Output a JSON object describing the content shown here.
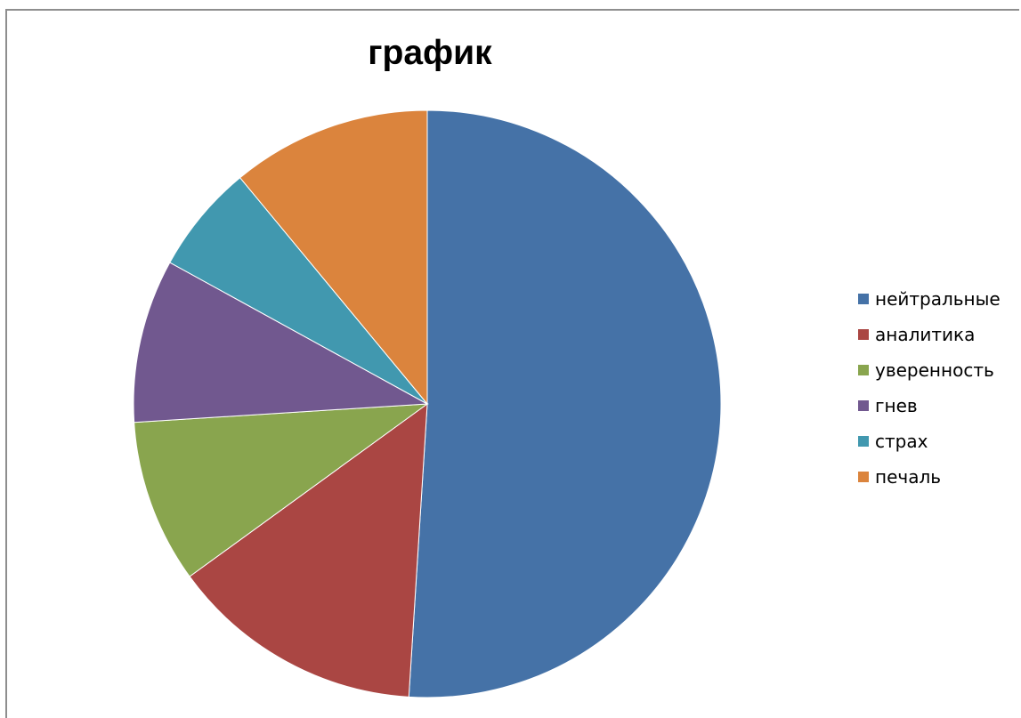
{
  "chart_data": {
    "type": "pie",
    "title": "график",
    "categories": [
      "нейтральные",
      "аналитика",
      "уверенность",
      "гнев",
      "страх",
      "печаль"
    ],
    "values": [
      51,
      14,
      9,
      9,
      6,
      11
    ],
    "colors": [
      "#4572a7",
      "#aa4643",
      "#89a54e",
      "#71588f",
      "#4198af",
      "#db843d"
    ],
    "start_angle_deg": 0,
    "direction": "clockwise",
    "legend_position": "right"
  }
}
